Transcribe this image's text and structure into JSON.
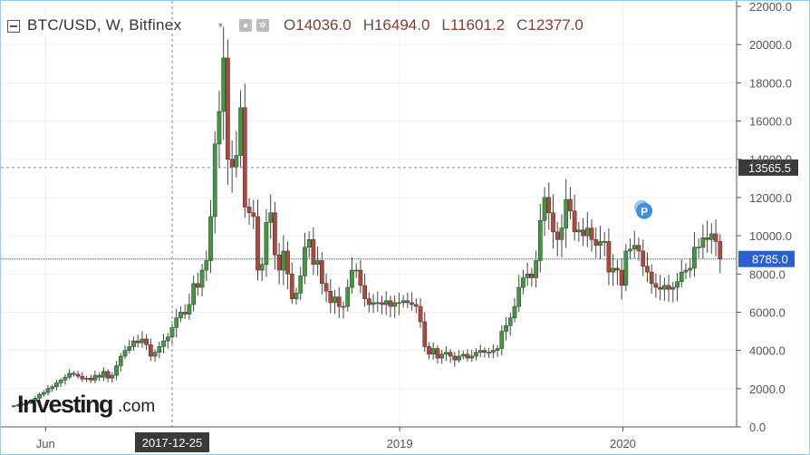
{
  "header": {
    "symbol": "BTC/USD, W, Bitfinex",
    "caret": "▾",
    "ohlc": [
      {
        "k": "O",
        "v": "14036.0"
      },
      {
        "k": "H",
        "v": "16494.0"
      },
      {
        "k": "L",
        "v": "11601.2"
      },
      {
        "k": "C",
        "v": "12377.0"
      }
    ]
  },
  "icons": [
    "eye-icon",
    "gear-icon"
  ],
  "watermark": {
    "brand": "Investing",
    "suffix": ".com"
  },
  "badges": {
    "hover_price": "13565.5",
    "last_price": "8785.0"
  },
  "crosshair_date": "2017-12-25",
  "marker": {
    "label": "P"
  },
  "colors": {
    "up": "#3e9a3e",
    "down": "#b5473a",
    "wick": "#444444",
    "last_line": "#2a5fd0",
    "badge_bg": "#3a3a3a",
    "marker": "#3d8fe0"
  },
  "chart_data": {
    "type": "candlestick",
    "title": "BTC/USD, W, Bitfinex",
    "y_ticks": [
      0,
      2000,
      4000,
      6000,
      8000,
      10000,
      12000,
      14000,
      16000,
      18000,
      20000,
      22000
    ],
    "y_tick_labels": [
      "0.0",
      "2000.0",
      "4000.0",
      "6000.0",
      "8000.0",
      "10000.0",
      "12000.0",
      "14000.0",
      "16000.0",
      "18000.0",
      "20000.0",
      "22000.0"
    ],
    "ylim": [
      0,
      22000
    ],
    "x_ticks": [
      {
        "date": "2017-06-01",
        "label": "Jun"
      },
      {
        "date": "2019-01-01",
        "label": "2019"
      },
      {
        "date": "2020-01-01",
        "label": "2020"
      }
    ],
    "x_range": [
      "2017-03-20",
      "2020-07-05"
    ],
    "hover_date": "2017-12-25",
    "hover_price": 13565.5,
    "last_price": 8785.0,
    "close_series": [
      1100,
      1150,
      1200,
      1250,
      1350,
      1500,
      1700,
      1800,
      2000,
      2100,
      2300,
      2450,
      2600,
      2800,
      2750,
      2650,
      2500,
      2550,
      2450,
      2700,
      2600,
      2900,
      2550,
      2700,
      3200,
      3700,
      4000,
      4200,
      4500,
      4400,
      4600,
      4300,
      3700,
      3900,
      4200,
      4500,
      4700,
      5200,
      5700,
      6000,
      5900,
      6400,
      7500,
      7300,
      8200,
      8700,
      11000,
      14800,
      16500,
      19300,
      14000,
      13600,
      14200,
      16700,
      11500,
      11200,
      11000,
      8200,
      8500,
      10700,
      11200,
      9000,
      8200,
      9200,
      8000,
      6700,
      7000,
      7900,
      9400,
      9800,
      8500,
      8700,
      7500,
      7100,
      6500,
      6800,
      6300,
      6300,
      7300,
      8200,
      8200,
      7400,
      6700,
      6400,
      6500,
      6500,
      6400,
      6600,
      6300,
      6500,
      6500,
      6600,
      6500,
      6400,
      6300,
      5500,
      4200,
      3800,
      4100,
      3600,
      3800,
      3900,
      3700,
      3500,
      3700,
      3800,
      3600,
      3700,
      3900,
      4000,
      3900,
      3900,
      4000,
      4100,
      5000,
      5300,
      5700,
      6300,
      7300,
      7800,
      8000,
      7800,
      8700,
      10800,
      12000,
      11200,
      10200,
      9800,
      10400,
      11900,
      11300,
      10200,
      10300,
      10000,
      10400,
      9800,
      9500,
      9700,
      9700,
      8100,
      8300,
      8200,
      7400,
      9200,
      9300,
      9500,
      9200,
      8400,
      8100,
      7500,
      7300,
      7200,
      7400,
      7200,
      7300,
      7600,
      8100,
      8200,
      8300,
      9400,
      9400,
      9900,
      9800,
      10100,
      9700,
      8785
    ]
  }
}
